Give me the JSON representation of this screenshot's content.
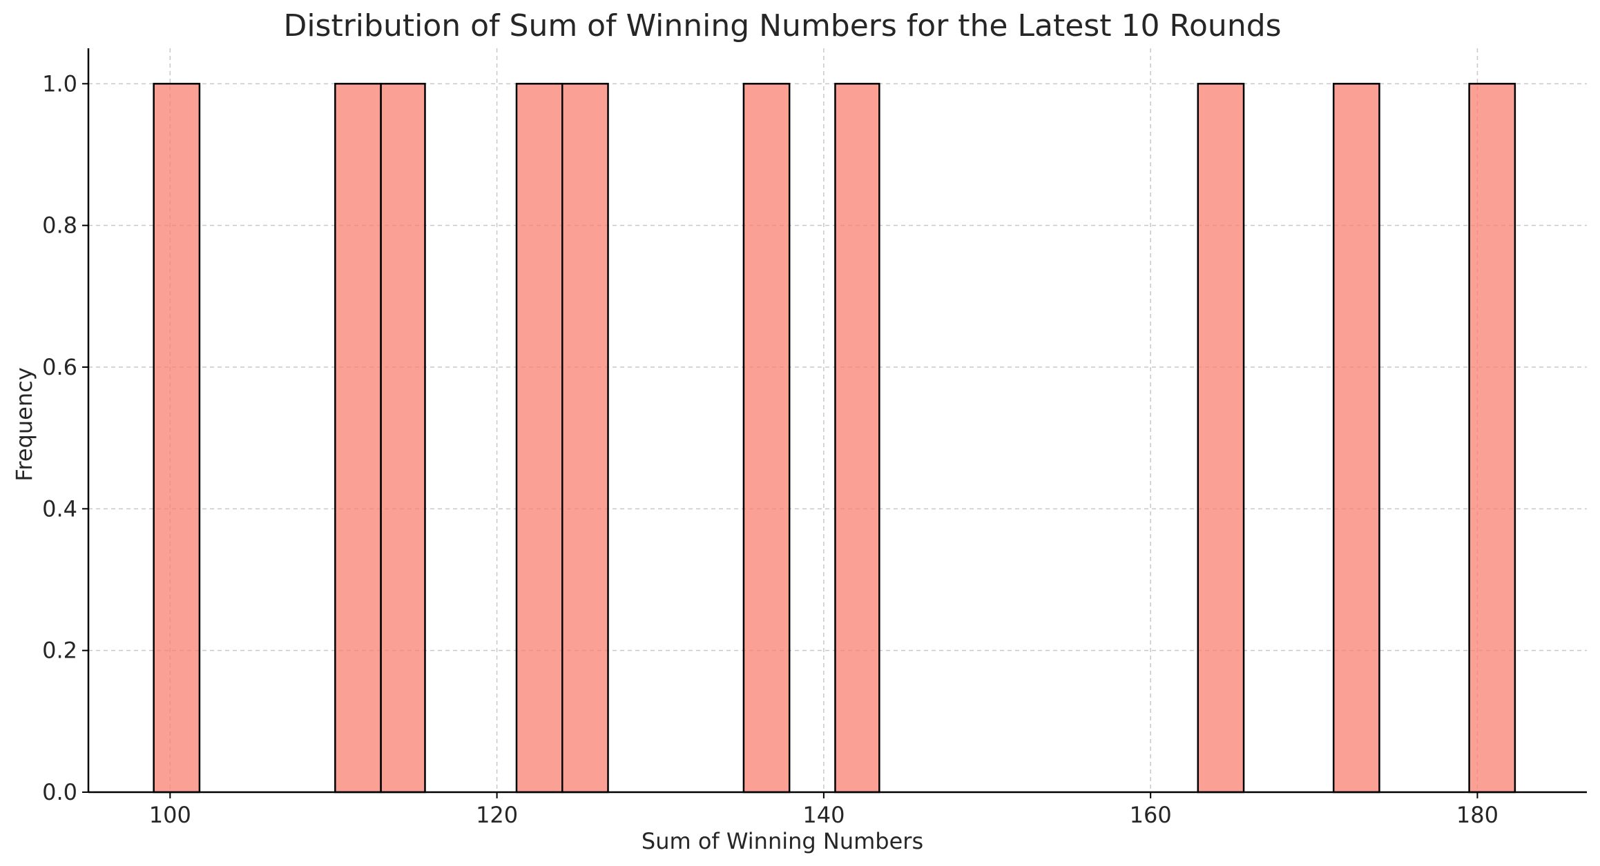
{
  "chart_data": {
    "type": "bar",
    "title": "Distribution of Sum of Winning Numbers for the Latest 10 Rounds",
    "xlabel": "Sum of Winning Numbers",
    "ylabel": "Frequency",
    "xlim": [
      95,
      186.7
    ],
    "ylim": [
      0,
      1.05
    ],
    "x_ticks": [
      100,
      120,
      140,
      160,
      180
    ],
    "x_tick_labels": [
      "100",
      "120",
      "140",
      "160",
      "180"
    ],
    "y_ticks": [
      0.0,
      0.2,
      0.4,
      0.6,
      0.8,
      1.0
    ],
    "y_tick_labels": [
      "0.0",
      "0.2",
      "0.4",
      "0.6",
      "0.8",
      "1.0"
    ],
    "grid": true,
    "bar_color": "#fa8072",
    "bar_edge_color": "#000000",
    "bars": [
      {
        "x_start": 99.0,
        "x_end": 101.8,
        "value": 1
      },
      {
        "x_start": 110.1,
        "x_end": 112.9,
        "value": 1
      },
      {
        "x_start": 112.9,
        "x_end": 115.6,
        "value": 1
      },
      {
        "x_start": 121.2,
        "x_end": 124.0,
        "value": 1
      },
      {
        "x_start": 124.0,
        "x_end": 126.8,
        "value": 1
      },
      {
        "x_start": 135.1,
        "x_end": 137.9,
        "value": 1
      },
      {
        "x_start": 140.7,
        "x_end": 143.4,
        "value": 1
      },
      {
        "x_start": 162.9,
        "x_end": 165.7,
        "value": 1
      },
      {
        "x_start": 171.2,
        "x_end": 174.0,
        "value": 1
      },
      {
        "x_start": 179.5,
        "x_end": 182.3,
        "value": 1
      }
    ]
  }
}
